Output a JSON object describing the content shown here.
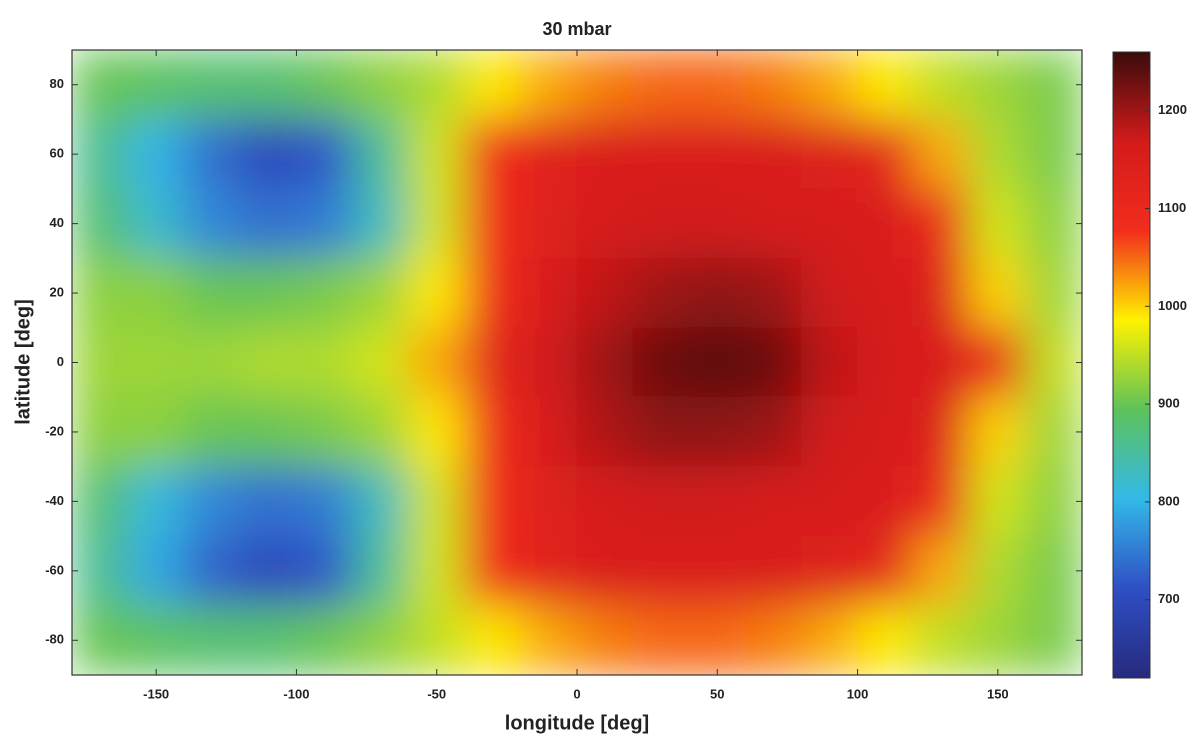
{
  "chart_data": {
    "type": "heatmap",
    "title": "30 mbar",
    "x_label": "longitude [deg]",
    "y_label": "latitude [deg]",
    "xlim": [
      -180,
      180
    ],
    "ylim": [
      -90,
      90
    ],
    "xticks": [
      -150,
      -100,
      -50,
      0,
      50,
      100,
      150
    ],
    "yticks": [
      -80,
      -60,
      -40,
      -20,
      0,
      20,
      40,
      60,
      80
    ],
    "x": [
      -170,
      -150,
      -130,
      -110,
      -90,
      -70,
      -50,
      -30,
      -10,
      10,
      30,
      50,
      70,
      90,
      110,
      130,
      150,
      170
    ],
    "y": [
      80,
      60,
      40,
      20,
      0,
      -20,
      -40,
      -60,
      -80
    ],
    "z": [
      [
        900,
        890,
        880,
        880,
        900,
        920,
        940,
        990,
        1020,
        1040,
        1050,
        1050,
        1040,
        1020,
        990,
        950,
        930,
        910
      ],
      [
        860,
        800,
        740,
        700,
        720,
        850,
        960,
        1080,
        1130,
        1150,
        1150,
        1150,
        1150,
        1140,
        1120,
        1020,
        940,
        910
      ],
      [
        880,
        820,
        760,
        740,
        750,
        830,
        960,
        1080,
        1140,
        1160,
        1170,
        1170,
        1160,
        1160,
        1150,
        1100,
        960,
        920
      ],
      [
        920,
        920,
        900,
        900,
        910,
        930,
        990,
        1090,
        1150,
        1180,
        1200,
        1210,
        1200,
        1170,
        1160,
        1140,
        1000,
        930
      ],
      [
        930,
        930,
        930,
        940,
        940,
        960,
        1020,
        1120,
        1170,
        1200,
        1230,
        1240,
        1230,
        1180,
        1160,
        1150,
        1100,
        950
      ],
      [
        920,
        920,
        900,
        900,
        910,
        930,
        990,
        1090,
        1150,
        1190,
        1210,
        1210,
        1200,
        1170,
        1160,
        1140,
        1000,
        930
      ],
      [
        880,
        810,
        760,
        740,
        750,
        830,
        960,
        1080,
        1140,
        1160,
        1170,
        1170,
        1160,
        1160,
        1150,
        1100,
        960,
        920
      ],
      [
        860,
        790,
        730,
        700,
        720,
        850,
        960,
        1080,
        1130,
        1150,
        1150,
        1150,
        1150,
        1140,
        1120,
        1020,
        940,
        910
      ],
      [
        900,
        890,
        880,
        880,
        900,
        920,
        950,
        990,
        1020,
        1040,
        1050,
        1050,
        1040,
        1020,
        990,
        950,
        930,
        910
      ]
    ],
    "clim": [
      620,
      1260
    ],
    "cticks": [
      700,
      800,
      900,
      1000,
      1100,
      1200
    ],
    "colormap": [
      "#262a7e",
      "#2f4fc4",
      "#33b8e8",
      "#5dc25a",
      "#fff200",
      "#f22d1c",
      "#d31b1b",
      "#3a0b0b"
    ]
  }
}
